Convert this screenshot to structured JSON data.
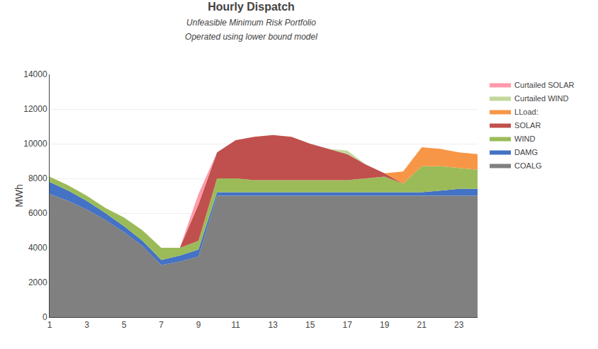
{
  "chart_data": {
    "type": "stacked_area",
    "title": "Hourly Dispatch",
    "subtitle": [
      "Unfeasible Minimum Risk Portfolio",
      "Operated using lower bound model"
    ],
    "ylabel": "MWh",
    "x": [
      1,
      2,
      3,
      4,
      5,
      6,
      7,
      8,
      9,
      10,
      11,
      12,
      13,
      14,
      15,
      16,
      17,
      18,
      19,
      20,
      21,
      22,
      23,
      24
    ],
    "series": [
      {
        "name": "COALG",
        "color": "#808080",
        "values": [
          7100,
          6700,
          6200,
          5600,
          4900,
          4100,
          3000,
          3200,
          3500,
          7000,
          7000,
          7000,
          7000,
          7000,
          7000,
          7000,
          7000,
          7000,
          7000,
          7000,
          7000,
          7000,
          7000,
          7000
        ]
      },
      {
        "name": "DAMG",
        "color": "#4472C4",
        "values": [
          700,
          600,
          500,
          400,
          350,
          300,
          300,
          350,
          400,
          200,
          200,
          200,
          200,
          200,
          200,
          200,
          200,
          200,
          200,
          200,
          200,
          300,
          400,
          400
        ]
      },
      {
        "name": "WIND",
        "color": "#9BBB59",
        "values": [
          300,
          300,
          300,
          300,
          500,
          600,
          700,
          450,
          500,
          800,
          800,
          700,
          700,
          700,
          700,
          700,
          700,
          800,
          900,
          500,
          1500,
          1400,
          1200,
          1100
        ]
      },
      {
        "name": "SOLAR",
        "color": "#C0504D",
        "values": [
          0,
          0,
          0,
          0,
          0,
          0,
          0,
          0,
          2100,
          1500,
          2200,
          2500,
          2600,
          2500,
          2100,
          1800,
          1500,
          800,
          200,
          0,
          0,
          0,
          0,
          0
        ]
      },
      {
        "name": "LLoad:",
        "color": "#F79646",
        "values": [
          0,
          0,
          0,
          0,
          0,
          0,
          0,
          0,
          0,
          0,
          0,
          0,
          0,
          0,
          0,
          0,
          0,
          0,
          0,
          700,
          1100,
          1000,
          900,
          900
        ]
      },
      {
        "name": "Curtailed WIND",
        "color": "#C4D79B",
        "values": [
          0,
          0,
          0,
          0,
          0,
          0,
          0,
          0,
          0,
          0,
          0,
          0,
          0,
          0,
          0,
          0,
          200,
          0,
          0,
          0,
          0,
          0,
          0,
          0
        ]
      },
      {
        "name": "Curtailed SOLAR",
        "color": "#FF99AA",
        "values": [
          0,
          0,
          0,
          0,
          0,
          0,
          0,
          0,
          600,
          0,
          0,
          0,
          0,
          0,
          0,
          0,
          0,
          0,
          0,
          0,
          0,
          0,
          0,
          0
        ]
      }
    ],
    "stacked": true,
    "xlim": [
      1,
      24
    ],
    "xticks": [
      1,
      3,
      5,
      7,
      9,
      11,
      13,
      15,
      17,
      19,
      21,
      23
    ],
    "ylim": [
      0,
      14000
    ],
    "yticks": [
      0,
      2000,
      4000,
      6000,
      8000,
      10000,
      12000,
      14000
    ],
    "grid": true,
    "legend": "right"
  }
}
